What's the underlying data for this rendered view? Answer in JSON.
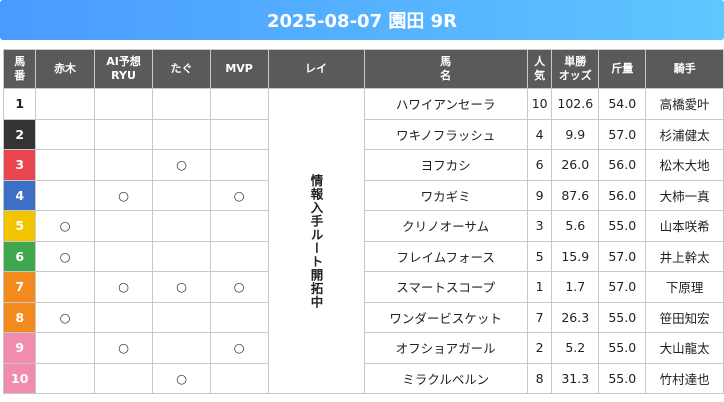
{
  "title": "2025-08-07 園田 9R",
  "headers": {
    "horse_no": "馬番",
    "akaki": "赤木",
    "ai": "AI予想\nRYU",
    "tagu": "たぐ",
    "mvp": "MVP",
    "rei": "レイ",
    "name": "馬名",
    "popularity": "人気",
    "odds": "単勝\nオッズ",
    "weight": "斤量",
    "jockey": "騎手"
  },
  "rei_notice": "情報入手ルート開拓中",
  "colors": {
    "1": "#ffffff",
    "2": "#333333",
    "3": "#e8454f",
    "4": "#3d6fc4",
    "5": "#f2c400",
    "6": "#3fa84e",
    "7": "#f28a1e",
    "8": "#f28a1e",
    "9": "#f08cb0",
    "10": "#f08cb0"
  },
  "horses": [
    {
      "no": "1",
      "akaki": "",
      "ai": "",
      "tagu": "",
      "mvp": "",
      "name": "ハワイアンセーラ",
      "pop": "10",
      "odds": "102.6",
      "weight": "54.0",
      "jockey": "高橋愛叶"
    },
    {
      "no": "2",
      "akaki": "",
      "ai": "",
      "tagu": "",
      "mvp": "",
      "name": "ワキノフラッシュ",
      "pop": "4",
      "odds": "9.9",
      "weight": "57.0",
      "jockey": "杉浦健太"
    },
    {
      "no": "3",
      "akaki": "",
      "ai": "",
      "tagu": "○",
      "mvp": "",
      "name": "ヨフカシ",
      "pop": "6",
      "odds": "26.0",
      "weight": "56.0",
      "jockey": "松木大地"
    },
    {
      "no": "4",
      "akaki": "",
      "ai": "○",
      "tagu": "",
      "mvp": "○",
      "name": "ワカギミ",
      "pop": "9",
      "odds": "87.6",
      "weight": "56.0",
      "jockey": "大柿一真"
    },
    {
      "no": "5",
      "akaki": "○",
      "ai": "",
      "tagu": "",
      "mvp": "",
      "name": "クリノオーサム",
      "pop": "3",
      "odds": "5.6",
      "weight": "55.0",
      "jockey": "山本咲希"
    },
    {
      "no": "6",
      "akaki": "○",
      "ai": "",
      "tagu": "",
      "mvp": "",
      "name": "フレイムフォース",
      "pop": "5",
      "odds": "15.9",
      "weight": "57.0",
      "jockey": "井上幹太"
    },
    {
      "no": "7",
      "akaki": "",
      "ai": "○",
      "tagu": "○",
      "mvp": "○",
      "name": "スマートスコープ",
      "pop": "1",
      "odds": "1.7",
      "weight": "57.0",
      "jockey": "下原理"
    },
    {
      "no": "8",
      "akaki": "○",
      "ai": "",
      "tagu": "",
      "mvp": "",
      "name": "ワンダービスケット",
      "pop": "7",
      "odds": "26.3",
      "weight": "55.0",
      "jockey": "笹田知宏"
    },
    {
      "no": "9",
      "akaki": "",
      "ai": "○",
      "tagu": "",
      "mvp": "○",
      "name": "オフショアガール",
      "pop": "2",
      "odds": "5.2",
      "weight": "55.0",
      "jockey": "大山龍太"
    },
    {
      "no": "10",
      "akaki": "",
      "ai": "",
      "tagu": "○",
      "mvp": "",
      "name": "ミラクルベルン",
      "pop": "8",
      "odds": "31.3",
      "weight": "55.0",
      "jockey": "竹村達也"
    }
  ]
}
